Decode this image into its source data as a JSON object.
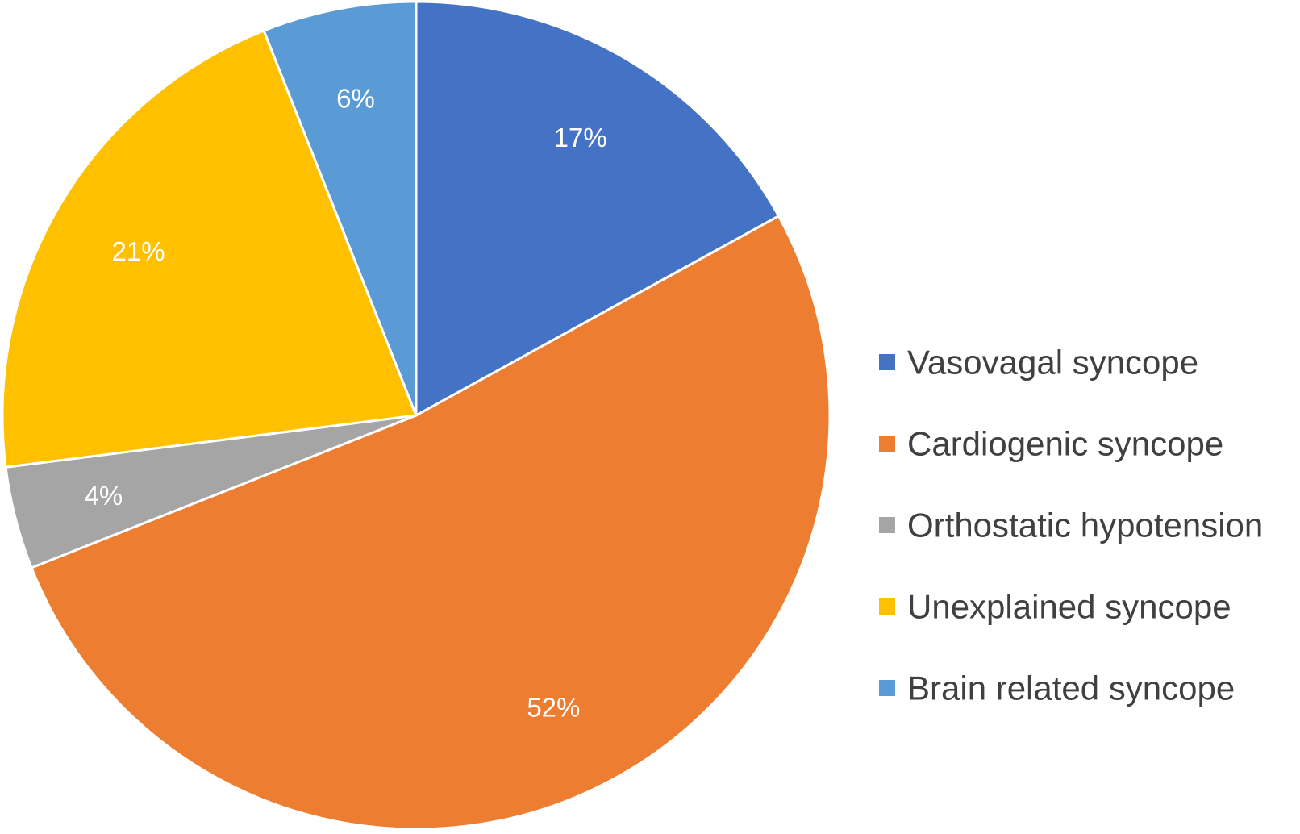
{
  "chart_data": {
    "type": "pie",
    "title": "",
    "legend_position": "right",
    "start_angle_deg": 0,
    "direction": "clockwise",
    "slices": [
      {
        "name": "Vasovagal syncope",
        "value": 17,
        "label": "17%",
        "color": "#4472C4"
      },
      {
        "name": "Cardiogenic syncope",
        "value": 52,
        "label": "52%",
        "color": "#ED7D31"
      },
      {
        "name": "Orthostatic hypotension",
        "value": 4,
        "label": "4%",
        "color": "#A5A5A5"
      },
      {
        "name": "Unexplained syncope",
        "value": 21,
        "label": "21%",
        "color": "#FFC000"
      },
      {
        "name": "Brain related syncope",
        "value": 6,
        "label": "6%",
        "color": "#5B9BD5"
      }
    ]
  }
}
